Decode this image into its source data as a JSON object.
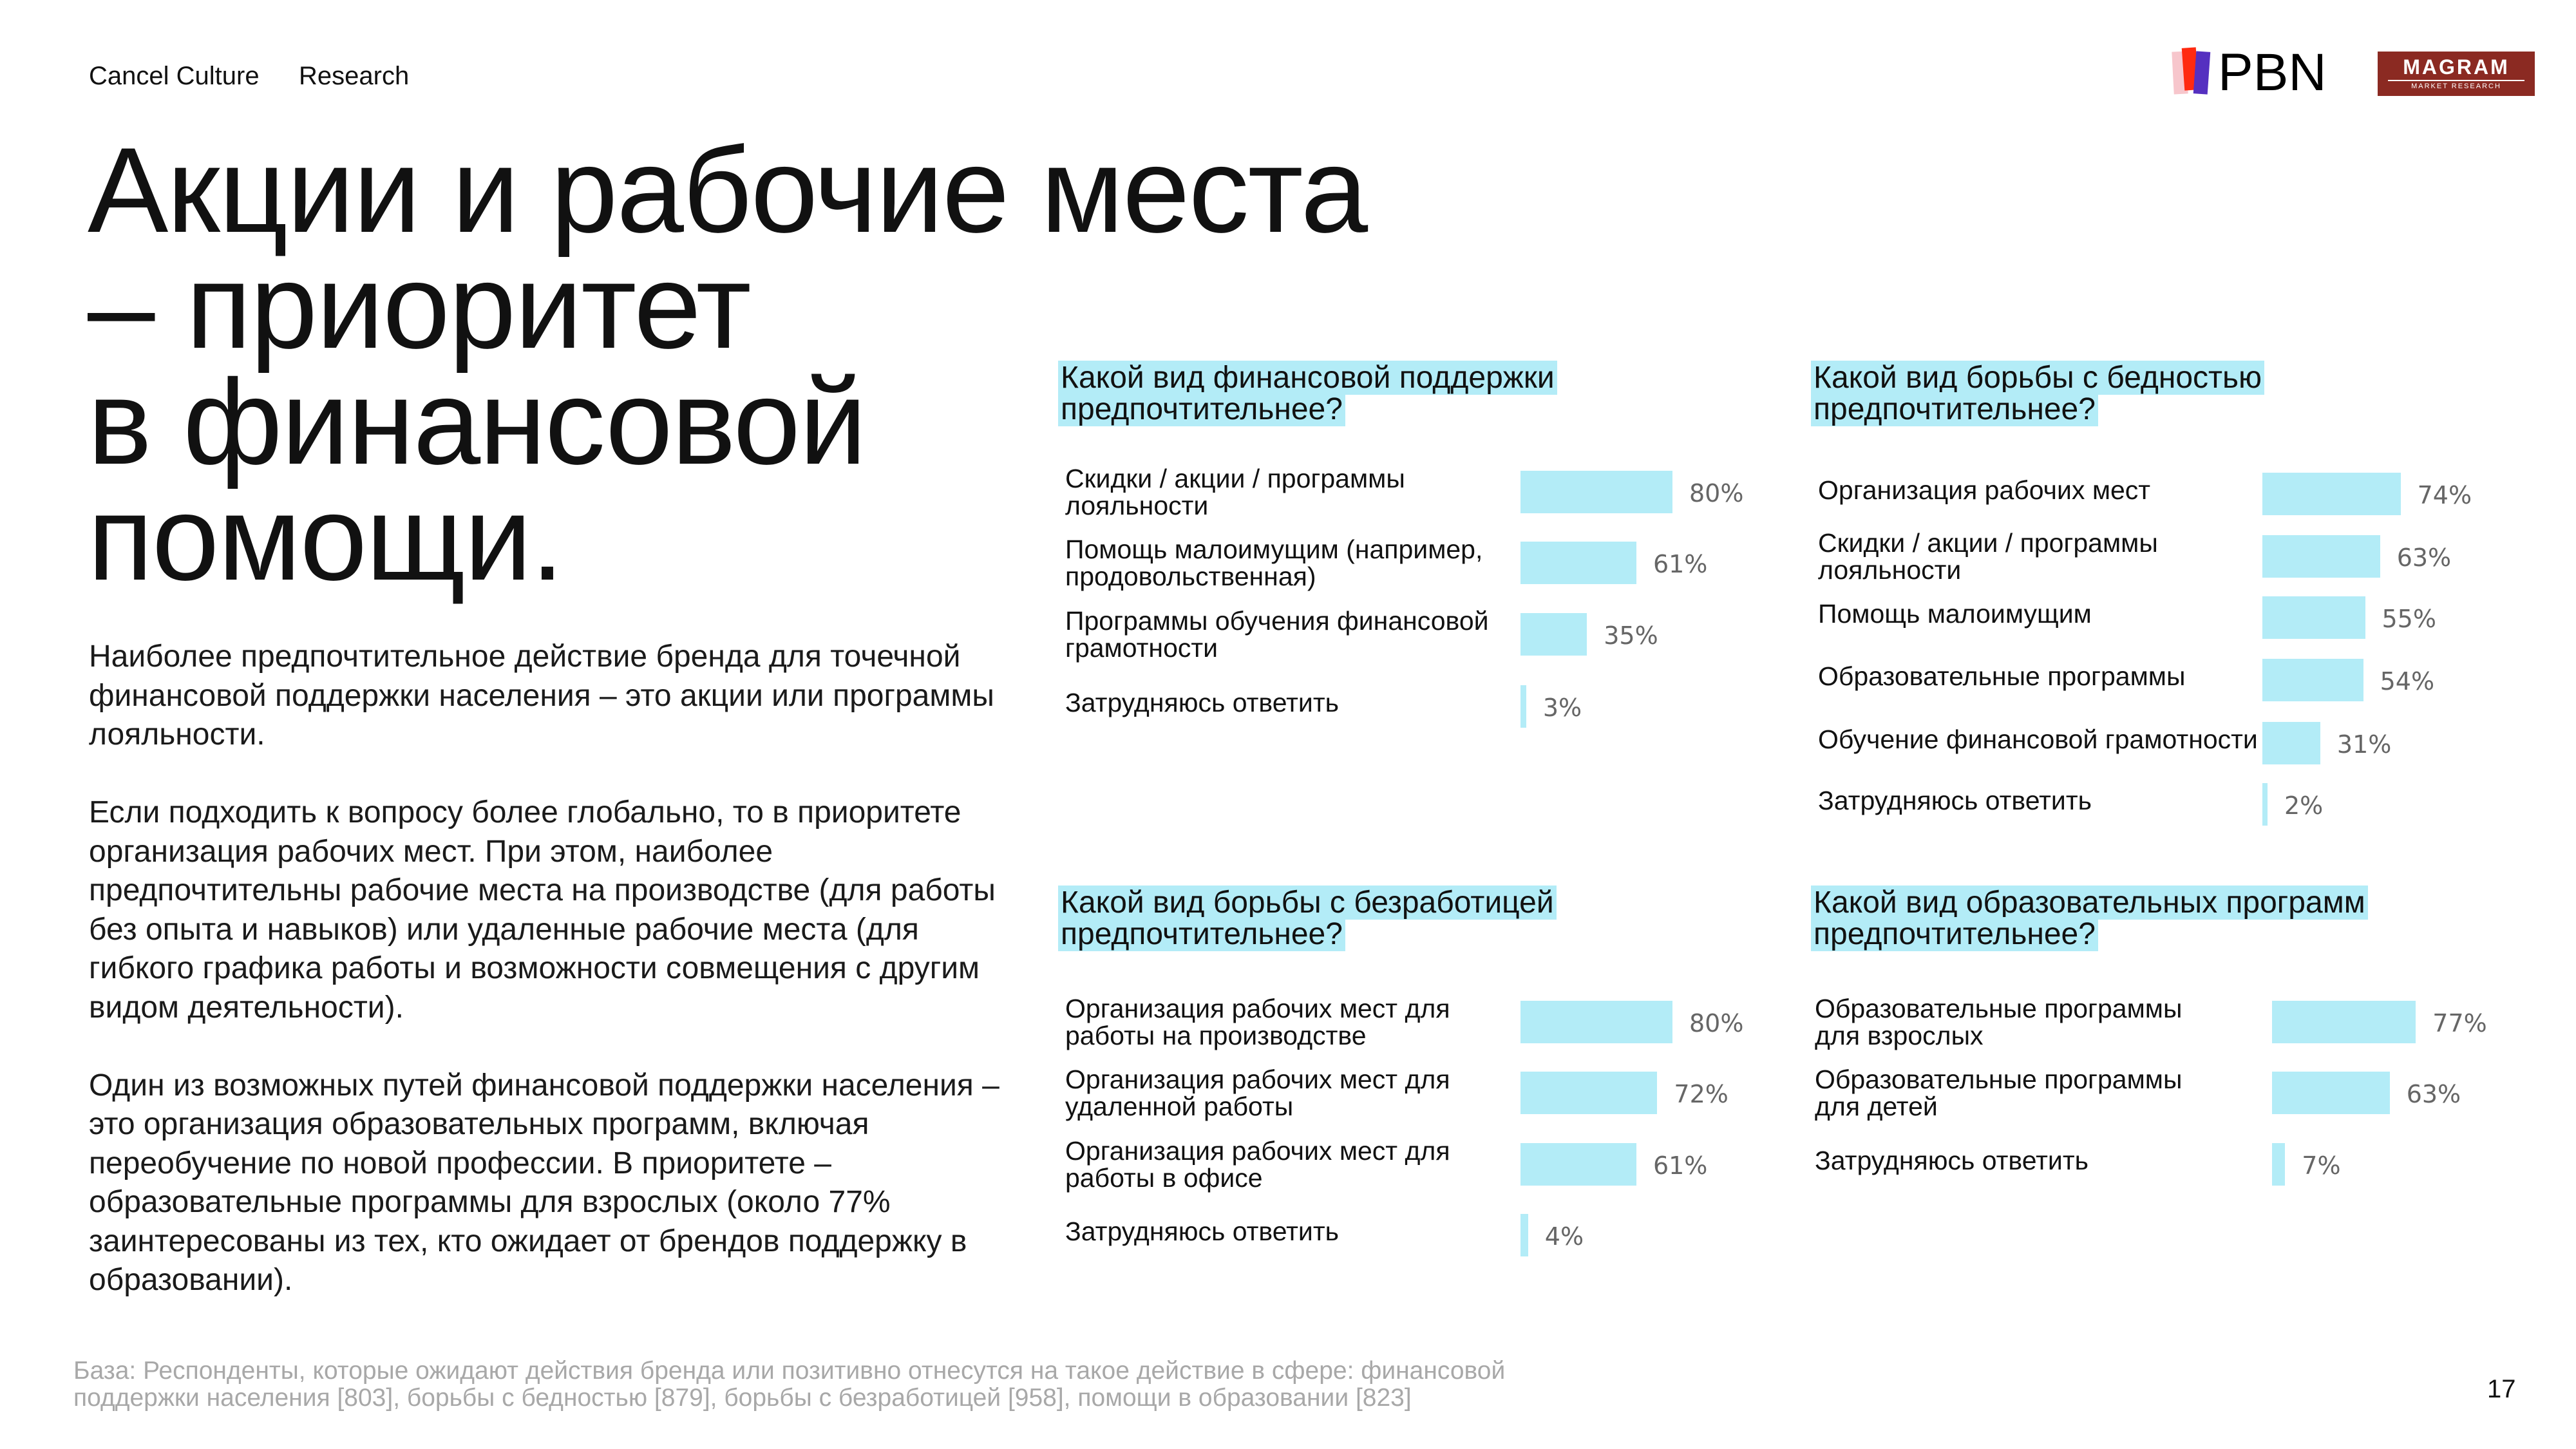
{
  "header": {
    "tag1": "Cancel Culture",
    "tag2": "Research"
  },
  "logos": {
    "pbn": "PBN",
    "magram": "MAGRAM",
    "magram_sub": "MARKET RESEARCH"
  },
  "title": [
    "Акции и рабочие места",
    "– приоритет",
    "в финансовой",
    "помощи."
  ],
  "body": [
    "Наиболее предпочтительное действие бренда для точечной финансовой поддержки населения – это акции или программы лояльности.",
    "Если подходить к вопросу более глобально, то в приоритете организация рабочих мест. При этом, наиболее предпочтительны рабочие места на производстве (для работы без опыта и навыков) или удаленные рабочие места (для гибкого графика работы и возможности совмещения с другим видом деятельности).",
    "Один из возможных путей финансовой поддержки населения – это организация образовательных программ, включая переобучение по новой профессии. В приоритете – образовательные программы для взрослых (около 77% заинтересованы из тех, кто ожидает от брендов поддержку в образовании)."
  ],
  "footer": "База: Респонденты, которые ожидают действия бренда или позитивно отнесутся на такое действие в сфере: финансовой поддержки населения [803], борьбы с бедностью [879], борьбы с безработицей [958], помощи в образовании [823]",
  "page_number": "17",
  "colors": {
    "bar": "#b3ecf7",
    "highlight": "#b3ecf7",
    "magram": "#8b2a22"
  },
  "chart_data": [
    {
      "type": "bar",
      "title": "Какой вид финансовой поддержки предпочтительнее?",
      "categories": [
        "Скидки / акции / программы\nлояльности",
        "Помощь малоимущим (например,\nпродовольственная)",
        "Программы обучения финансовой\nграмотности",
        "Затрудняюсь ответить"
      ],
      "values": [
        80,
        61,
        35,
        3
      ],
      "labels": [
        "80%",
        "61%",
        "35%",
        "3%"
      ],
      "unit": "%"
    },
    {
      "type": "bar",
      "title": "Какой вид борьбы с бедностью предпочтительнее?",
      "categories": [
        "Организация рабочих мест",
        "Скидки / акции / программы\nлояльности",
        "Помощь малоимущим",
        "Образовательные программы",
        "Обучение финансовой грамотности",
        "Затрудняюсь ответить"
      ],
      "values": [
        74,
        63,
        55,
        54,
        31,
        2
      ],
      "labels": [
        "74%",
        "63%",
        "55%",
        "54%",
        "31%",
        "2%"
      ],
      "unit": "%"
    },
    {
      "type": "bar",
      "title": "Какой вид борьбы с безработицей предпочтительнее?",
      "categories": [
        "Организация рабочих мест для\nработы на производстве",
        "Организация рабочих мест для\nудаленной работы",
        "Организация рабочих мест для\nработы в офисе",
        "Затрудняюсь ответить"
      ],
      "values": [
        80,
        72,
        61,
        4
      ],
      "labels": [
        "80%",
        "72%",
        "61%",
        "4%"
      ],
      "unit": "%"
    },
    {
      "type": "bar",
      "title": "Какой вид образовательных программ предпочтительнее?",
      "categories": [
        "Образовательные программы\nдля взрослых",
        "Образовательные программы\nдля детей",
        "Затрудняюсь ответить"
      ],
      "values": [
        77,
        63,
        7
      ],
      "labels": [
        "77%",
        "63%",
        "7%"
      ],
      "unit": "%"
    }
  ]
}
